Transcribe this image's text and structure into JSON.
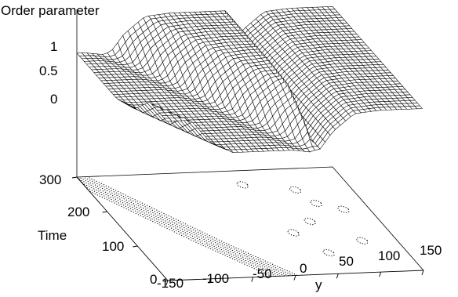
{
  "chart_data": {
    "type": "surface",
    "title": "",
    "zlabel": "Order parameter",
    "xlabel": "y",
    "ylabel": "Time",
    "x_ticks": [
      "-150",
      "-100",
      "-50",
      "0",
      "50",
      "100",
      "150"
    ],
    "x_range": [
      -150,
      150
    ],
    "y_ticks": [
      "0",
      "100",
      "200",
      "300"
    ],
    "y_range": [
      0,
      300
    ],
    "z_ticks": [
      "0",
      "0.5",
      "1"
    ],
    "z_range": [
      0,
      1
    ],
    "surface_profile": {
      "y": [
        -150,
        -120,
        -95,
        -70,
        -45,
        -20,
        0,
        20,
        30,
        45,
        70,
        100,
        130,
        150
      ],
      "order_parameter_at_time_0": [
        0.8,
        0.8,
        0.3,
        0.1,
        0.1,
        0.1,
        0.1,
        0.05,
        0.1,
        0.45,
        0.8,
        0.85,
        0.85,
        0.85
      ]
    },
    "front_position": {
      "time": [
        0,
        100,
        200,
        300
      ],
      "y": [
        10,
        -40,
        -85,
        -130
      ]
    },
    "contour_projection": true,
    "grid": false,
    "legend": "none",
    "colors": {
      "line": "#000000",
      "background": "#ffffff"
    }
  }
}
